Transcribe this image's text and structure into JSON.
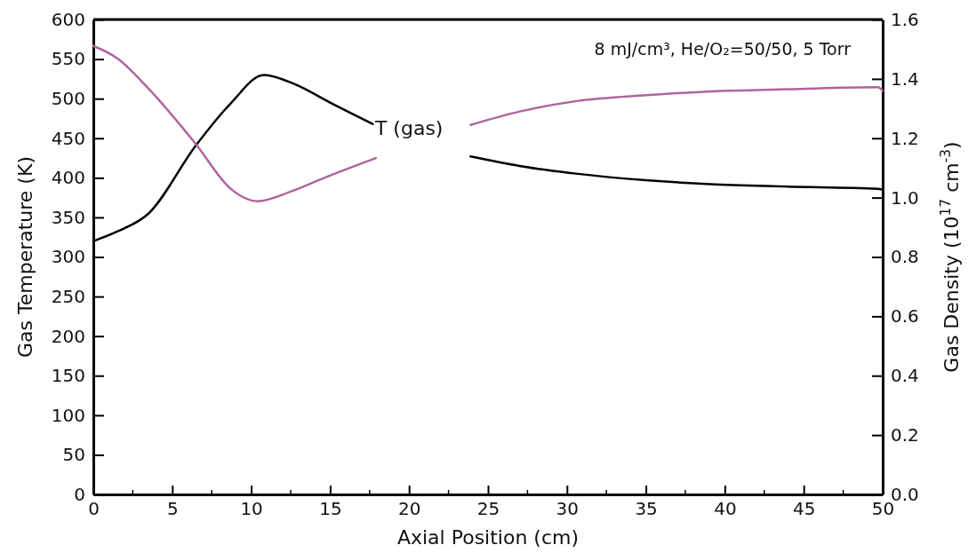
{
  "chart_data": {
    "type": "line",
    "xlabel": "Axial Position (cm)",
    "ylabel": "Gas Temperature (K)",
    "y2label": "Gas Density (10$^{17}$ cm$^{-3}$)",
    "annotations": [
      "8 mJ/cm³, He/O₂=50/50, 5 Torr"
    ],
    "xlim": [
      0,
      50
    ],
    "xticks": [
      0,
      5,
      10,
      15,
      20,
      25,
      30,
      35,
      40,
      45,
      50
    ],
    "ylim": [
      0,
      600
    ],
    "yticks": [
      0,
      50,
      100,
      150,
      200,
      250,
      300,
      350,
      400,
      450,
      500,
      550,
      600
    ],
    "y2lim": [
      0,
      1.6
    ],
    "y2ticks": [
      {
        "value": 0,
        "label": "0.0"
      },
      {
        "value": 0.2,
        "label": "0.2"
      },
      {
        "value": 0.4,
        "label": "0.4"
      },
      {
        "value": 0.6,
        "label": "0.6"
      },
      {
        "value": 0.8,
        "label": "0.8"
      },
      {
        "value": 1,
        "label": "1.0"
      },
      {
        "value": 1.2,
        "label": "1.2"
      },
      {
        "value": 1.4,
        "label": "1.4"
      },
      {
        "value": 1.6,
        "label": "1.6"
      }
    ],
    "grid": false,
    "legend": false,
    "marker": "none",
    "line_style": "solid",
    "series": [
      {
        "name": "T (gas)",
        "color": "#000000",
        "x": [
          0,
          1.5,
          3.5,
          6.5,
          8.7,
          10.8,
          12.8,
          15,
          17.7,
          20,
          23.9,
          27,
          30.7,
          35,
          39.1,
          44,
          49.7,
          50
        ],
        "values": [
          320,
          332,
          355,
          441,
          494,
          530,
          518,
          495,
          468,
          null,
          427,
          415,
          405,
          397,
          392,
          389,
          386,
          385
        ]
      },
      {
        "axis": "y2",
        "color": "#b0649e",
        "x": [
          0,
          1.5,
          3.5,
          6.5,
          8.7,
          10.4,
          12.5,
          14.7,
          17.9,
          20,
          23.9,
          27,
          30.7,
          35,
          39.1,
          44,
          49.7,
          50
        ],
        "values": [
          1.511,
          1.47,
          1.367,
          1.18,
          1.03,
          0.988,
          1.02,
          1.068,
          1.133,
          null,
          1.245,
          1.29,
          1.326,
          1.345,
          1.358,
          1.365,
          1.372,
          1.36
        ]
      }
    ]
  }
}
